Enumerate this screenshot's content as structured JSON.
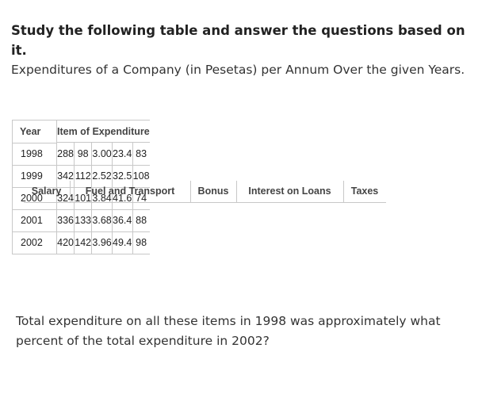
{
  "heading": "Study the following table and answer the questions based on it.",
  "subheading": "Expenditures of a Company (in Pesetas) per Annum Over the given Years.",
  "table": {
    "year_header": "Year",
    "group_header": "Item of Expenditure",
    "columns": [
      "Salary",
      "Fuel and Transport",
      "Bonus",
      "Interest on Loans",
      "Taxes"
    ],
    "rows": [
      {
        "year": "1998",
        "values": [
          "288",
          "98",
          "3.00",
          "23.4",
          "83"
        ]
      },
      {
        "year": "1999",
        "values": [
          "342",
          "112",
          "2.52",
          "32.5",
          "108"
        ]
      },
      {
        "year": "2000",
        "values": [
          "324",
          "101",
          "3.84",
          "41.6",
          "74"
        ]
      },
      {
        "year": "2001",
        "values": [
          "336",
          "133",
          "3.68",
          "36.4",
          "88"
        ]
      },
      {
        "year": "2002",
        "values": [
          "420",
          "142",
          "3.96",
          "49.4",
          "98"
        ]
      }
    ]
  },
  "question": "Total expenditure on all these items in 1998 was approximately what percent of the total expenditure in 2002?"
}
